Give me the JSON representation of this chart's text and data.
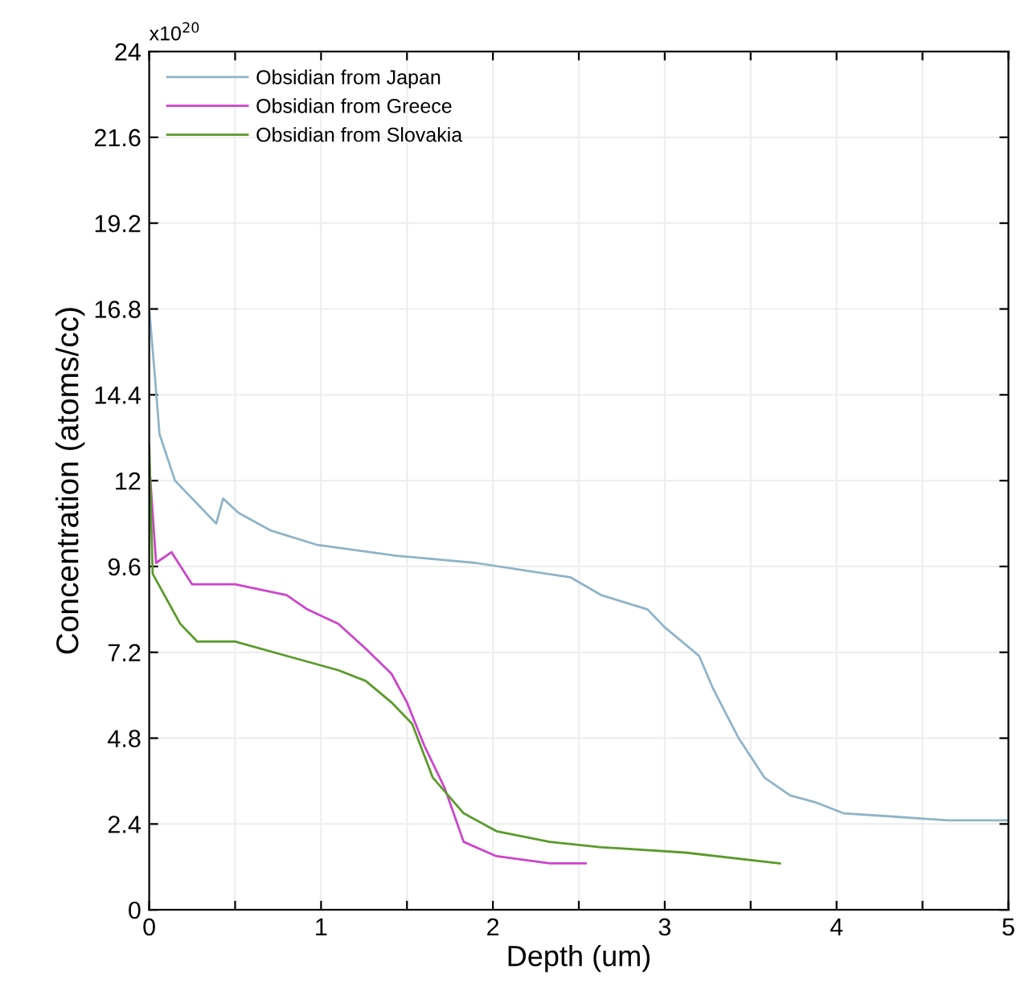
{
  "chart_data": {
    "type": "line",
    "xlabel": "Depth (um)",
    "ylabel": "Concentration (atoms/cc)",
    "annotations": [
      "x10$^{20}$"
    ],
    "xlim": [
      0,
      5
    ],
    "ylim": [
      0,
      24
    ],
    "xticks": [
      0,
      {
        "value": 0.5,
        "label": null
      },
      1,
      {
        "value": 1.5,
        "label": null
      },
      2,
      {
        "value": 2.5,
        "label": null
      },
      3,
      {
        "value": 3.5,
        "label": null
      },
      4,
      {
        "value": 4.5,
        "label": null
      },
      5
    ],
    "yticks": [
      0,
      2.4,
      4.8,
      7.2,
      9.6,
      12,
      14.4,
      16.8,
      19.2,
      21.6,
      24
    ],
    "grid": true,
    "legend": "top left",
    "marker": "none",
    "line_style": "solid",
    "series": [
      {
        "name": "Obsidian from Japan",
        "color": "#8fb4c8",
        "x": [
          0,
          0.03,
          0.06,
          0.15,
          0.29,
          0.39,
          0.43,
          0.52,
          0.71,
          0.98,
          1.44,
          1.9,
          2.17,
          2.45,
          2.63,
          2.9,
          3.0,
          3.1,
          3.2,
          3.28,
          3.43,
          3.58,
          3.73,
          3.88,
          4.04,
          4.35,
          4.65,
          5.0
        ],
        "values": [
          16.8,
          15.1,
          13.3,
          12.0,
          11.3,
          10.8,
          11.5,
          11.1,
          10.6,
          10.2,
          9.9,
          9.7,
          9.5,
          9.3,
          8.8,
          8.4,
          7.9,
          7.5,
          7.1,
          6.2,
          4.8,
          3.7,
          3.2,
          3.0,
          2.7,
          2.6,
          2.5,
          2.5
        ]
      },
      {
        "name": "Obsidian from Greece",
        "color": "#cc44cc",
        "x": [
          0,
          0.04,
          0.13,
          0.25,
          0.5,
          0.8,
          0.92,
          1.1,
          1.26,
          1.41,
          1.5,
          1.6,
          1.72,
          1.83,
          2.02,
          2.33,
          2.54
        ],
        "values": [
          12.5,
          9.7,
          10.0,
          9.1,
          9.1,
          8.8,
          8.4,
          8.0,
          7.3,
          6.6,
          5.8,
          4.6,
          3.4,
          1.9,
          1.5,
          1.3,
          1.3
        ]
      },
      {
        "name": "Obsidian from Slovakia",
        "color": "#5a9a2a",
        "x": [
          0,
          0.02,
          0.18,
          0.28,
          0.5,
          0.8,
          1.1,
          1.26,
          1.41,
          1.53,
          1.65,
          1.83,
          2.02,
          2.33,
          2.63,
          3.12,
          3.67
        ],
        "values": [
          13.0,
          9.4,
          8.0,
          7.5,
          7.5,
          7.1,
          6.7,
          6.4,
          5.8,
          5.2,
          3.7,
          2.7,
          2.2,
          1.9,
          1.75,
          1.6,
          1.3
        ]
      }
    ]
  }
}
